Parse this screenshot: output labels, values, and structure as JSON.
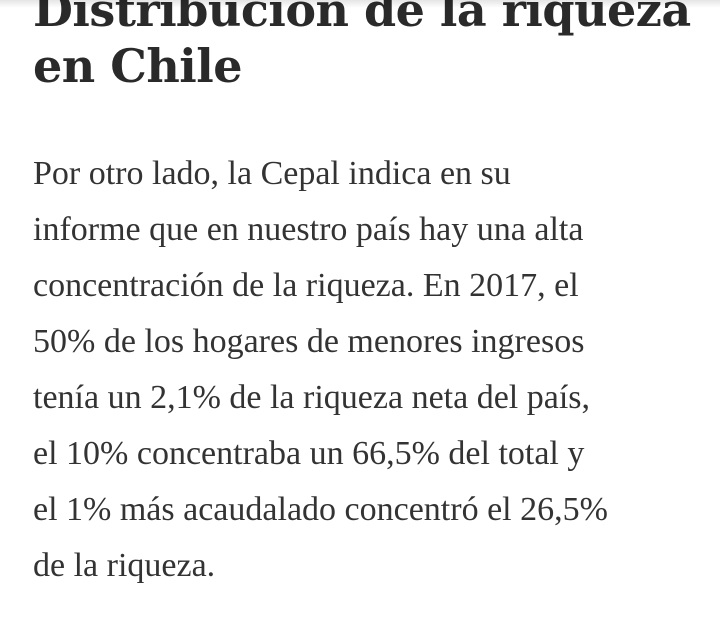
{
  "article": {
    "title_lines": [
      "Distribución de la riqueza",
      "en Chile"
    ],
    "paragraph_lines": [
      "Por otro lado, la Cepal indica en su",
      "informe que en nuestro país hay una alta",
      "concentración de la riqueza. En 2017, el",
      "50% de los hogares de menores ingresos",
      "tenía un 2,1% de la riqueza neta del país,",
      "el 10% concentraba un 66,5% del total y",
      "el 1% más acaudalado concentró el 26,5%",
      "de la riqueza."
    ]
  },
  "colors": {
    "background": "#ffffff",
    "heading_text": "#2a2a2a",
    "body_text": "#333333"
  }
}
